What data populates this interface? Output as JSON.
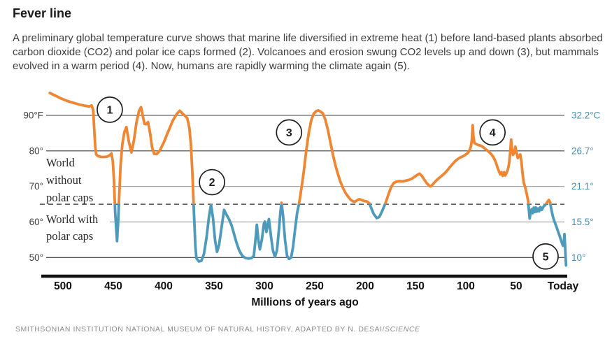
{
  "header": {
    "title": "Fever line",
    "description": "A preliminary global temperature curve shows that marine life diversified in extreme heat (1) before land-based plants absorbed carbon dioxide (CO2) and polar ice caps formed (2). Volcanoes and erosion swung CO2 levels up and down (3), but mammals evolved in a warm period (4). Now, humans are rapidly warming the climate again (5).",
    "icon": "none"
  },
  "source": {
    "text": "SMITHSONIAN INSTITUTION NATIONAL MUSEUM OF NATURAL HISTORY, ADAPTED BY N. DESAI/",
    "italic": "SCIENCE"
  },
  "chart_data": {
    "type": "line",
    "title": "Fever line",
    "xlabel": "Millions of years ago",
    "x_ticks": [
      {
        "myr": 500,
        "label": "500"
      },
      {
        "myr": 450,
        "label": "450"
      },
      {
        "myr": 400,
        "label": "400"
      },
      {
        "myr": 350,
        "label": "350"
      },
      {
        "myr": 300,
        "label": "300"
      },
      {
        "myr": 250,
        "label": "250"
      },
      {
        "myr": 200,
        "label": "200"
      },
      {
        "myr": 150,
        "label": "150"
      },
      {
        "myr": 100,
        "label": "100"
      },
      {
        "myr": 50,
        "label": "50"
      },
      {
        "myr": 0,
        "label": "Today"
      }
    ],
    "x_range_myr": [
      513,
      0
    ],
    "y_range_f": [
      44,
      97
    ],
    "y_gridlines": [
      {
        "f": 90,
        "left_label": "90°F",
        "right_label": "32.2°C",
        "shade": "dark",
        "full_width": true
      },
      {
        "f": 80,
        "left_label": "80°",
        "right_label": "26.7°",
        "shade": "dark",
        "full_width": true
      },
      {
        "f": 70,
        "left_label": "70°",
        "right_label": "21.1°",
        "shade": "light",
        "full_width": false
      },
      {
        "f": 60,
        "left_label": "60°",
        "right_label": "15.5°",
        "shade": "light",
        "full_width": false
      },
      {
        "f": 50,
        "left_label": "50°",
        "right_label": "10°",
        "shade": "dark",
        "full_width": true
      }
    ],
    "threshold": {
      "f": 65,
      "style": "dashed",
      "meaning": "boundary between world without and with polar caps"
    },
    "zone_labels": [
      {
        "lines": [
          "World",
          "without",
          "polar caps"
        ],
        "position": "above dashed line"
      },
      {
        "lines": [
          "World with",
          "polar caps"
        ],
        "position": "below dashed line"
      }
    ],
    "annotations": [
      {
        "label": "1",
        "myr": 453.5,
        "f": 91.6
      },
      {
        "label": "2",
        "myr": 352,
        "f": 71.2
      },
      {
        "label": "3",
        "myr": 275.5,
        "f": 85.2
      },
      {
        "label": "4",
        "myr": 73.5,
        "f": 85.2
      },
      {
        "label": "5",
        "myr": 20.8,
        "f": 50.3
      }
    ],
    "colors": {
      "warm": "#EE8633",
      "cool": "#4D9ABB",
      "grid_dark": "#3e3e3e",
      "grid_light": "#9a9a9a",
      "dashed_line": "#4a4a4a",
      "axis": "#111111",
      "left_tick_text": "#3d3d3d",
      "right_tick_text": "#4A8FAD",
      "annotation_stroke": "#1f1f1f"
    },
    "legend": "line is orange above 65°F / 18.3°C (no polar caps), blue below (polar caps)",
    "series": [
      {
        "name": "Global temperature",
        "units": [
          "millions of years ago",
          "°F"
        ],
        "points": [
          [
            513,
            96.3
          ],
          [
            508,
            95.6
          ],
          [
            503,
            94.9
          ],
          [
            498,
            94.3
          ],
          [
            493,
            93.8
          ],
          [
            488,
            93.4
          ],
          [
            483,
            93.0
          ],
          [
            478,
            92.7
          ],
          [
            474,
            92.5
          ],
          [
            471.5,
            92.8
          ],
          [
            470,
            91.5
          ],
          [
            469,
            86.5
          ],
          [
            468,
            81.5
          ],
          [
            467,
            79.0
          ],
          [
            465,
            78.5
          ],
          [
            462,
            78.3
          ],
          [
            459,
            78.3
          ],
          [
            456,
            78.4
          ],
          [
            453.5,
            78.8
          ],
          [
            451.8,
            79.3
          ],
          [
            450.5,
            77.0
          ],
          [
            449.3,
            71.5
          ],
          [
            448.2,
            63.0
          ],
          [
            446.3,
            54.6
          ],
          [
            445.2,
            60.0
          ],
          [
            444,
            68.0
          ],
          [
            442.8,
            76.0
          ],
          [
            441,
            82.0
          ],
          [
            439,
            85.3
          ],
          [
            437,
            86.7
          ],
          [
            434.5,
            82.5
          ],
          [
            432,
            79.6
          ],
          [
            429.5,
            83.0
          ],
          [
            427,
            88.0
          ],
          [
            424.5,
            91.2
          ],
          [
            422.5,
            92.3
          ],
          [
            420.5,
            89.5
          ],
          [
            419,
            87.6
          ],
          [
            417.5,
            87.5
          ],
          [
            415.5,
            88.1
          ],
          [
            413.5,
            85.0
          ],
          [
            411.5,
            81.0
          ],
          [
            409.5,
            79.2
          ],
          [
            407,
            79.1
          ],
          [
            404,
            80.0
          ],
          [
            400,
            82.3
          ],
          [
            396,
            85.1
          ],
          [
            391,
            88.5
          ],
          [
            387,
            90.4
          ],
          [
            384,
            91.3
          ],
          [
            381.5,
            90.6
          ],
          [
            378.5,
            89.8
          ],
          [
            376.5,
            89.2
          ],
          [
            374.5,
            86.5
          ],
          [
            373,
            82.0
          ],
          [
            371.5,
            74.0
          ],
          [
            370,
            63.0
          ],
          [
            368.5,
            53.0
          ],
          [
            367.5,
            49.8
          ],
          [
            365,
            48.9
          ],
          [
            362.5,
            49.1
          ],
          [
            360,
            51.0
          ],
          [
            357.5,
            55.5
          ],
          [
            355,
            61.5
          ],
          [
            353,
            64.9
          ],
          [
            351,
            61.0
          ],
          [
            349,
            55.0
          ],
          [
            347,
            51.6
          ],
          [
            345,
            53.5
          ],
          [
            342.5,
            58.5
          ],
          [
            340,
            63.4
          ],
          [
            337.5,
            62.0
          ],
          [
            335,
            60.7
          ],
          [
            332.5,
            59.0
          ],
          [
            330,
            56.5
          ],
          [
            327.5,
            54.0
          ],
          [
            325,
            52.0
          ],
          [
            322,
            50.5
          ],
          [
            319,
            49.9
          ],
          [
            316,
            49.7
          ],
          [
            313,
            49.8
          ],
          [
            310.5,
            50.5
          ],
          [
            308.5,
            56.0
          ],
          [
            307.5,
            59.2
          ],
          [
            306,
            55.0
          ],
          [
            304.5,
            52.3
          ],
          [
            302.5,
            55.0
          ],
          [
            300.5,
            59.5
          ],
          [
            299.5,
            60.1
          ],
          [
            298,
            57.2
          ],
          [
            296.5,
            59.5
          ],
          [
            295.5,
            60.8
          ],
          [
            293.5,
            56.0
          ],
          [
            291.5,
            52.0
          ],
          [
            289.5,
            50.2
          ],
          [
            287.5,
            52.0
          ],
          [
            285.5,
            58.0
          ],
          [
            284,
            63.0
          ],
          [
            283,
            65.4
          ],
          [
            281.5,
            62.0
          ],
          [
            279.5,
            55.0
          ],
          [
            277.5,
            50.5
          ],
          [
            275.5,
            49.6
          ],
          [
            273.5,
            50.0
          ],
          [
            271.5,
            53.0
          ],
          [
            269.5,
            58.0
          ],
          [
            267.5,
            62.5
          ],
          [
            265.5,
            65.3
          ],
          [
            263.5,
            69.0
          ],
          [
            261,
            74.0
          ],
          [
            258.5,
            80.0
          ],
          [
            256,
            85.0
          ],
          [
            253.5,
            88.6
          ],
          [
            251,
            90.5
          ],
          [
            248.5,
            91.2
          ],
          [
            246.5,
            91.4
          ],
          [
            244,
            91.0
          ],
          [
            242,
            90.6
          ],
          [
            239.5,
            88.8
          ],
          [
            237,
            86.0
          ],
          [
            234.5,
            82.5
          ],
          [
            232,
            79.0
          ],
          [
            229.5,
            76.0
          ],
          [
            227,
            73.5
          ],
          [
            224.5,
            71.3
          ],
          [
            222,
            69.6
          ],
          [
            219.5,
            68.2
          ],
          [
            217,
            67.2
          ],
          [
            214.5,
            66.3
          ],
          [
            212,
            65.8
          ],
          [
            210,
            65.7
          ],
          [
            207.5,
            66.2
          ],
          [
            205.5,
            66.4
          ],
          [
            203.5,
            66.2
          ],
          [
            201,
            65.9
          ],
          [
            198.5,
            65.8
          ],
          [
            196,
            65.3
          ],
          [
            194,
            64.0
          ],
          [
            191.5,
            62.3
          ],
          [
            188.5,
            61.1
          ],
          [
            186,
            61.4
          ],
          [
            183.5,
            62.8
          ],
          [
            181,
            64.5
          ],
          [
            179,
            65.9
          ],
          [
            176.5,
            68.0
          ],
          [
            174,
            69.9
          ],
          [
            171.5,
            71.0
          ],
          [
            169,
            71.3
          ],
          [
            166,
            71.5
          ],
          [
            163,
            71.4
          ],
          [
            160,
            71.6
          ],
          [
            157,
            71.8
          ],
          [
            154,
            72.1
          ],
          [
            151,
            72.7
          ],
          [
            148,
            73.3
          ],
          [
            146,
            73.6
          ],
          [
            143.5,
            72.9
          ],
          [
            141,
            71.8
          ],
          [
            138.5,
            70.8
          ],
          [
            136,
            70.1
          ],
          [
            135,
            70.0
          ],
          [
            133,
            70.5
          ],
          [
            131,
            71.2
          ],
          [
            128.5,
            71.9
          ],
          [
            126,
            72.5
          ],
          [
            123.5,
            73.1
          ],
          [
            121,
            73.7
          ],
          [
            118.5,
            74.5
          ],
          [
            116,
            75.4
          ],
          [
            113.5,
            76.2
          ],
          [
            111,
            77.0
          ],
          [
            108.5,
            77.6
          ],
          [
            106,
            78.1
          ],
          [
            103.5,
            78.4
          ],
          [
            101,
            78.8
          ],
          [
            98.5,
            79.3
          ],
          [
            96.5,
            80.0
          ],
          [
            95,
            81.2
          ],
          [
            94,
            83.0
          ],
          [
            93.2,
            87.2
          ],
          [
            92.4,
            84.0
          ],
          [
            91.5,
            82.2
          ],
          [
            89.5,
            81.9
          ],
          [
            87,
            81.6
          ],
          [
            84.5,
            81.4
          ],
          [
            82,
            80.9
          ],
          [
            79.5,
            80.3
          ],
          [
            77,
            79.7
          ],
          [
            74.5,
            79.0
          ],
          [
            72.5,
            78.2
          ],
          [
            70.5,
            77.0
          ],
          [
            68.5,
            75.3
          ],
          [
            67,
            74.2
          ],
          [
            65.8,
            73.4
          ],
          [
            64.5,
            74.0
          ],
          [
            63.2,
            73.0
          ],
          [
            62,
            74.0
          ],
          [
            60.8,
            73.1
          ],
          [
            59.5,
            73.9
          ],
          [
            58.2,
            74.8
          ],
          [
            57,
            76.5
          ],
          [
            55.8,
            80.0
          ],
          [
            55,
            83.2
          ],
          [
            54.2,
            80.5
          ],
          [
            53.2,
            78.9
          ],
          [
            52,
            79.4
          ],
          [
            50.8,
            81.2
          ],
          [
            49.6,
            79.5
          ],
          [
            48.4,
            78.0
          ],
          [
            47.2,
            78.5
          ],
          [
            46,
            79.0
          ],
          [
            44.8,
            77.0
          ],
          [
            43.6,
            73.5
          ],
          [
            42.4,
            71.0
          ],
          [
            41,
            69.7
          ],
          [
            39.6,
            68.0
          ],
          [
            38.2,
            66.0
          ],
          [
            37.4,
            63.5
          ],
          [
            36.6,
            61.0
          ],
          [
            35.6,
            62.8
          ],
          [
            34.6,
            63.6
          ],
          [
            33.6,
            62.5
          ],
          [
            32.6,
            64.0
          ],
          [
            31.6,
            62.8
          ],
          [
            30.6,
            64.1
          ],
          [
            29.6,
            62.9
          ],
          [
            28.4,
            63.8
          ],
          [
            27.2,
            63.0
          ],
          [
            26,
            64.2
          ],
          [
            24.6,
            63.4
          ],
          [
            23,
            64.3
          ],
          [
            21.2,
            64.8
          ],
          [
            19.4,
            65.5
          ],
          [
            17.6,
            66.2
          ],
          [
            16.4,
            65.6
          ],
          [
            15,
            63.4
          ],
          [
            13.4,
            61.4
          ],
          [
            11.8,
            60.0
          ],
          [
            10.2,
            58.8
          ],
          [
            8.6,
            57.5
          ],
          [
            7,
            56.2
          ],
          [
            5.6,
            55.0
          ],
          [
            4.4,
            54.0
          ],
          [
            3.4,
            53.3
          ],
          [
            2.6,
            54.5
          ],
          [
            2.1,
            56.6
          ],
          [
            1.4,
            53.0
          ],
          [
            0.9,
            50.0
          ],
          [
            0.5,
            47.8
          ]
        ]
      }
    ]
  }
}
